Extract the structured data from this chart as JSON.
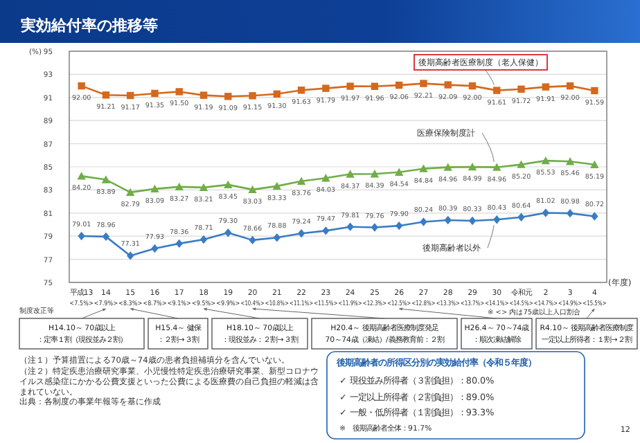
{
  "chart_data": {
    "type": "line",
    "title": "実効給付率の推移等",
    "ylabel": "(%)",
    "xlabel": "(年度)",
    "categories": [
      "平成13\n<7.5%>",
      "14\n<7.9%>",
      "15\n<8.3%>",
      "16\n<8.7%>",
      "17\n<9.1%>",
      "18\n<9.5%>",
      "19\n<9.9%>",
      "20\n<10.4%>",
      "21\n<10.8%>",
      "22\n<11.1%>",
      "23\n<11.5%>",
      "24\n<11.9%>",
      "25\n<12.3%>",
      "26\n<12.5%>",
      "27\n<12.8%>",
      "28\n<13.3%>",
      "29\n<13.7%>",
      "30\n<14.1%>",
      "令和元\n<14.5%>",
      "2\n<14.7%>",
      "3\n<14.9%>",
      "4\n<15.5%>"
    ],
    "series": [
      {
        "name": "後期高齢者医療制度（老人保健）",
        "color": "#d4691e",
        "marker": "square",
        "values": [
          92.0,
          91.21,
          91.17,
          91.35,
          91.5,
          91.19,
          91.09,
          91.15,
          91.3,
          91.63,
          91.79,
          91.97,
          91.96,
          92.06,
          92.21,
          92.09,
          92.0,
          91.61,
          91.72,
          91.91,
          92.0,
          91.59
        ],
        "value_labels": [
          "92.00",
          "91.21",
          "91.17",
          "91.35",
          "91.50",
          "91.19",
          "91.09",
          "91.15",
          "91.30",
          "91.63",
          "91.79",
          "91.97",
          "91.96",
          "92.06",
          "92.21",
          "92.09",
          "92.00",
          "91.61",
          "91.72",
          "91.91",
          "92.00",
          "91.59"
        ]
      },
      {
        "name": "医療保険制度計",
        "color": "#70ad47",
        "marker": "triangle",
        "values": [
          84.2,
          83.89,
          82.79,
          83.09,
          83.27,
          83.21,
          83.45,
          83.03,
          83.33,
          83.76,
          84.03,
          84.37,
          84.39,
          84.54,
          84.84,
          84.96,
          84.99,
          84.96,
          85.2,
          85.53,
          85.46,
          85.19
        ],
        "value_labels": [
          "84.20",
          "83.89",
          "82.79",
          "83.09",
          "83.27",
          "83.21",
          "83.45",
          "83.03",
          "83.33",
          "83.76",
          "84.03",
          "84.37",
          "84.39",
          "84.54",
          "84.84",
          "84.96",
          "84.99",
          "84.96",
          "85.20",
          "85.53",
          "85.46",
          "85.19"
        ]
      },
      {
        "name": "後期高齢者以外",
        "color": "#3a7cc4",
        "marker": "diamond",
        "values": [
          79.01,
          78.96,
          77.31,
          77.93,
          78.36,
          78.71,
          79.3,
          78.66,
          78.88,
          79.24,
          79.47,
          79.81,
          79.76,
          79.9,
          80.24,
          80.39,
          80.33,
          80.43,
          80.64,
          81.02,
          80.98,
          80.72
        ],
        "value_labels": [
          "79.01",
          "78.96",
          "77.31",
          "77.93",
          "78.36",
          "78.71",
          "79.30",
          "78.66",
          "78.88",
          "79.24",
          "79.47",
          "79.81",
          "79.76",
          "79.90",
          "80.24",
          "80.39",
          "80.33",
          "80.43",
          "80.64",
          "81.02",
          "80.98",
          "80.72"
        ]
      }
    ],
    "ylim": [
      75,
      95
    ],
    "yticks": [
      75,
      77,
      79,
      81,
      83,
      85,
      87,
      89,
      91,
      93,
      95
    ],
    "grid": "y",
    "annotations": [
      "制度改正等",
      "H14.10～ 70歳以上：定率１割（現役並み２割）",
      "H15.4～ 健保：２割→３割",
      "H18.10～ 70歳以上：現役並み：２割→３割",
      "H20.4～ 後期高齢者医療制度発足70～74歳（凍結）/義務教育前：２割",
      "H26.4～ 70～74歳：順次凍結解除",
      "R4.10～ 後期高齢者医療制度一定以上所得者：１割→２割",
      "※ <> 内は75歳以上人口割合",
      "（注１）予算措置による70歳～74歳の患者負担補填分を含んでいない。",
      "（注２）特定疾患治療研究事業、小児慢性特定疾患治療研究事業、新型コロナウイルス感染症にかかる公費支援といった公費による医療費の自己負担の軽減は含まれていない。",
      "出典：各制度の事業年報等を基に作成",
      "後期高齢者の所得区分別の実効給付率（令和５年度）",
      "✓ 現役並み所得者（３割負担）：80.0%",
      "✓ 一定以上所得者（２割負担）：89.0%",
      "✓ 一般・低所得者（１割負担）：93.3%",
      "※　後期高齢者全体：91.7%",
      "12"
    ]
  }
}
